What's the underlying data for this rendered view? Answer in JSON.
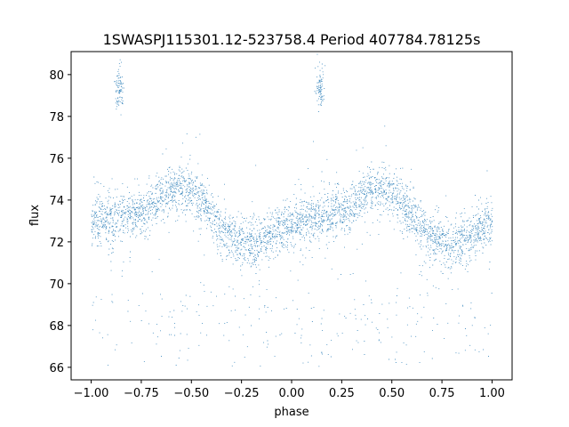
{
  "chart_data": {
    "type": "scatter",
    "title": "1SWASPJ115301.12-523758.4 Period 407784.78125s",
    "xlabel": "phase",
    "ylabel": "flux",
    "xlim": [
      -1.1,
      1.1
    ],
    "ylim": [
      65.4,
      81.1
    ],
    "xticks": [
      -1.0,
      -0.75,
      -0.5,
      -0.25,
      0.0,
      0.25,
      0.5,
      0.75,
      1.0
    ],
    "xtick_labels": [
      "−1.00",
      "−0.75",
      "−0.50",
      "−0.25",
      "0.00",
      "0.25",
      "0.50",
      "0.75",
      "1.00"
    ],
    "yticks": [
      66,
      68,
      70,
      72,
      74,
      76,
      78,
      80
    ],
    "ytick_labels": [
      "66",
      "68",
      "70",
      "72",
      "74",
      "76",
      "78",
      "80"
    ],
    "grid": false,
    "marker_color": "#1f77b4",
    "series": [
      {
        "description_of_trend": "phase-folded light curve, repeated for phase -1 to 0 and 0 to 1",
        "phase": [
          -1.0,
          -0.95,
          -0.9,
          -0.85,
          -0.8,
          -0.75,
          -0.7,
          -0.65,
          -0.6,
          -0.55,
          -0.5,
          -0.45,
          -0.4,
          -0.35,
          -0.3,
          -0.25,
          -0.2,
          -0.15,
          -0.1,
          -0.05,
          0.0,
          0.05,
          0.1,
          0.15,
          0.2,
          0.25,
          0.3,
          0.35,
          0.4,
          0.45,
          0.5,
          0.55,
          0.6,
          0.65,
          0.7,
          0.75,
          0.8,
          0.85,
          0.9,
          0.95,
          1.0
        ],
        "mean_flux": [
          72.9,
          73.0,
          73.1,
          73.2,
          73.3,
          73.5,
          73.8,
          74.2,
          74.5,
          74.6,
          74.4,
          73.9,
          73.3,
          72.6,
          72.2,
          72.0,
          71.9,
          72.0,
          72.3,
          72.7,
          72.9,
          73.0,
          73.1,
          73.2,
          73.3,
          73.5,
          73.8,
          74.2,
          74.5,
          74.6,
          74.4,
          73.9,
          73.3,
          72.6,
          72.2,
          72.0,
          71.9,
          72.0,
          72.3,
          72.7,
          72.9
        ]
      }
    ]
  }
}
